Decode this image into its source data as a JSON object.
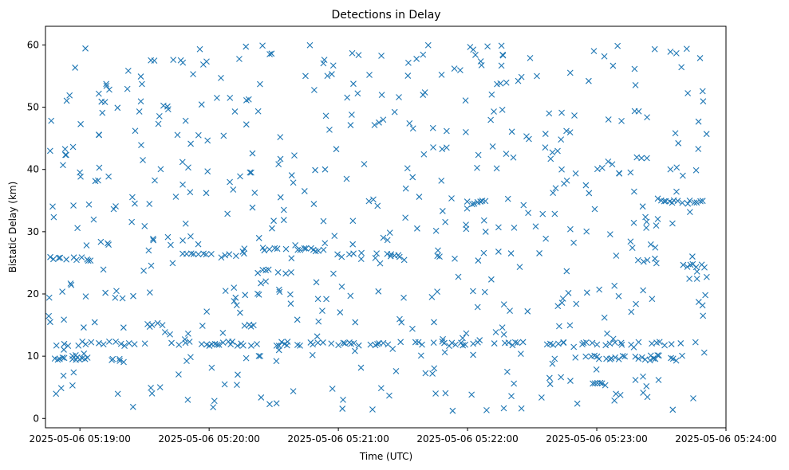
{
  "chart_data": {
    "type": "scatter",
    "title": "Detections in Delay",
    "xlabel": "Time (UTC)",
    "ylabel": "Bistatic Delay (km)",
    "marker": "x",
    "color": "#1f77b4",
    "grid": false,
    "xlim": [
      "2025-05-06 05:18:44",
      "2025-05-06 05:24:00"
    ],
    "ylim": [
      -1.5,
      63
    ],
    "xticks": [
      "2025-05-06 05:19:00",
      "2025-05-06 05:20:00",
      "2025-05-06 05:21:00",
      "2025-05-06 05:22:00",
      "2025-05-06 05:23:00",
      "2025-05-06 05:24:00"
    ],
    "yticks": [
      0,
      10,
      20,
      30,
      40,
      50,
      60
    ],
    "x_range_data": [
      "2025-05-06 05:18:45",
      "2025-05-06 05:23:52"
    ],
    "bands": [
      {
        "y": 12.0,
        "from": "2025-05-06 05:18:47",
        "to": "2025-05-06 05:23:52",
        "density": 0.45
      },
      {
        "y": 9.7,
        "from": "2025-05-06 05:18:47",
        "to": "2025-05-06 05:19:05",
        "density": 0.7
      },
      {
        "y": 9.3,
        "from": "2025-05-06 05:19:12",
        "to": "2025-05-06 05:19:24",
        "density": 0.7
      },
      {
        "y": 25.6,
        "from": "2025-05-06 05:18:45",
        "to": "2025-05-06 05:19:05",
        "density": 0.7
      },
      {
        "y": 26.2,
        "from": "2025-05-06 05:19:48",
        "to": "2025-05-06 05:20:10",
        "density": 0.5
      },
      {
        "y": 23.6,
        "from": "2025-05-06 05:20:25",
        "to": "2025-05-06 05:20:40",
        "density": 0.7
      },
      {
        "y": 27.2,
        "from": "2025-05-06 05:20:15",
        "to": "2025-05-06 05:20:55",
        "density": 0.5
      },
      {
        "y": 26.2,
        "from": "2025-05-06 05:21:00",
        "to": "2025-05-06 05:21:30",
        "density": 0.4
      },
      {
        "y": 34.7,
        "from": "2025-05-06 05:22:00",
        "to": "2025-05-06 05:22:10",
        "density": 0.5
      },
      {
        "y": 34.7,
        "from": "2025-05-06 05:23:30",
        "to": "2025-05-06 05:23:52",
        "density": 0.7
      },
      {
        "y": 9.8,
        "from": "2025-05-06 05:22:55",
        "to": "2025-05-06 05:23:40",
        "density": 0.6
      },
      {
        "y": 5.5,
        "from": "2025-05-06 05:22:58",
        "to": "2025-05-06 05:23:05",
        "density": 0.7
      },
      {
        "y": 24.5,
        "from": "2025-05-06 05:23:40",
        "to": "2025-05-06 05:23:50",
        "density": 0.7
      },
      {
        "y": 15.0,
        "from": "2025-05-06 05:19:30",
        "to": "2025-05-06 05:19:45",
        "density": 0.4
      },
      {
        "y": 15.0,
        "from": "2025-05-06 05:20:15",
        "to": "2025-05-06 05:20:25",
        "density": 0.4
      },
      {
        "y": 25.2,
        "from": "2025-05-06 05:23:22",
        "to": "2025-05-06 05:23:30",
        "density": 0.6
      }
    ],
    "random_points": 560
  }
}
